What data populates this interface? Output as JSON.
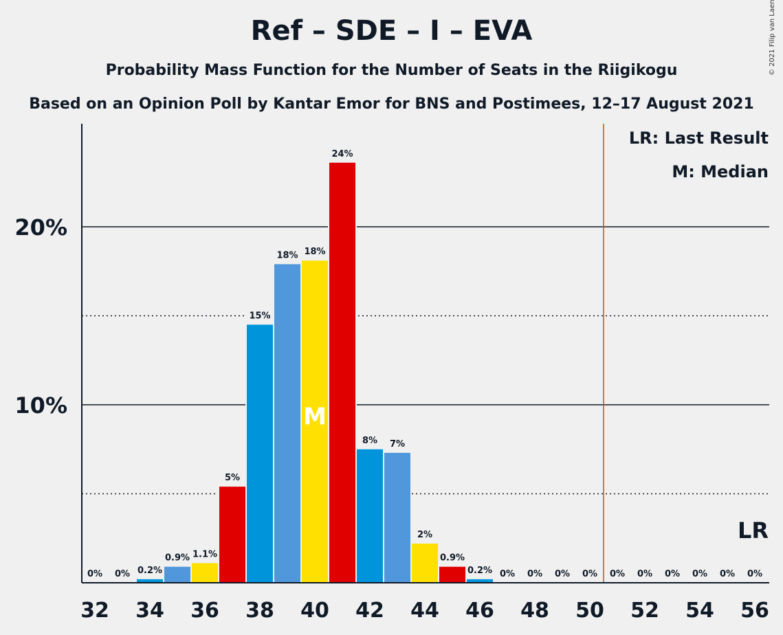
{
  "header": {
    "title": "Ref – SDE – I – EVA",
    "subtitle": "Probability Mass Function for the Number of Seats in the Riigikogu",
    "subtitle2": "Based on an Opinion Poll by Kantar Emor for BNS and Postimees, 12–17 August 2021",
    "copyright": "© 2021 Filip van Laenen"
  },
  "chart_data": {
    "type": "bar",
    "title": "Ref – SDE – I – EVA",
    "x": [
      32,
      33,
      34,
      35,
      36,
      37,
      38,
      39,
      40,
      41,
      42,
      43,
      44,
      45,
      46,
      47,
      48,
      49,
      50,
      51,
      52,
      53,
      54,
      55,
      56
    ],
    "values": [
      0,
      0,
      0.2,
      0.9,
      1.1,
      5.4,
      14.5,
      17.9,
      18.1,
      23.6,
      7.5,
      7.3,
      2.2,
      0.9,
      0.2,
      0,
      0,
      0,
      0,
      0,
      0,
      0,
      0,
      0,
      0
    ],
    "labels": [
      "0%",
      "0%",
      "0.2%",
      "0.9%",
      "1.1%",
      "5%",
      "15%",
      "18%",
      "18%",
      "24%",
      "8%",
      "7%",
      "2%",
      "0.9%",
      "0.2%",
      "0%",
      "0%",
      "0%",
      "0%",
      "0%",
      "0%",
      "0%",
      "0%",
      "0%",
      "0%"
    ],
    "colors": [
      "#0095db",
      "#5097db",
      "#0095db",
      "#5097db",
      "#ffe000",
      "#e00000",
      "#0095db",
      "#5097db",
      "#ffe000",
      "#e00000",
      "#0095db",
      "#5097db",
      "#ffe000",
      "#e00000",
      "#0095db",
      "#5097db",
      "#ffe000",
      "#e00000",
      "#0095db",
      "#5097db",
      "#ffe000",
      "#e00000",
      "#0095db",
      "#5097db",
      "#ffe000"
    ],
    "xtick_labels": [
      "32",
      "34",
      "36",
      "38",
      "40",
      "42",
      "44",
      "46",
      "48",
      "50",
      "52",
      "54",
      "56"
    ],
    "ytick_labels": [
      "10%",
      "20%"
    ],
    "ylim": [
      0,
      25
    ],
    "gridlines_solid": [
      10,
      20
    ],
    "gridlines_dotted": [
      5,
      15
    ],
    "median_seat": 40,
    "median_label": "M",
    "last_result_line": 50.5,
    "last_result_label": "LR",
    "legend": [
      "LR: Last Result",
      "M: Median"
    ],
    "legend_position": "top-right",
    "line_color": "#c85000"
  }
}
